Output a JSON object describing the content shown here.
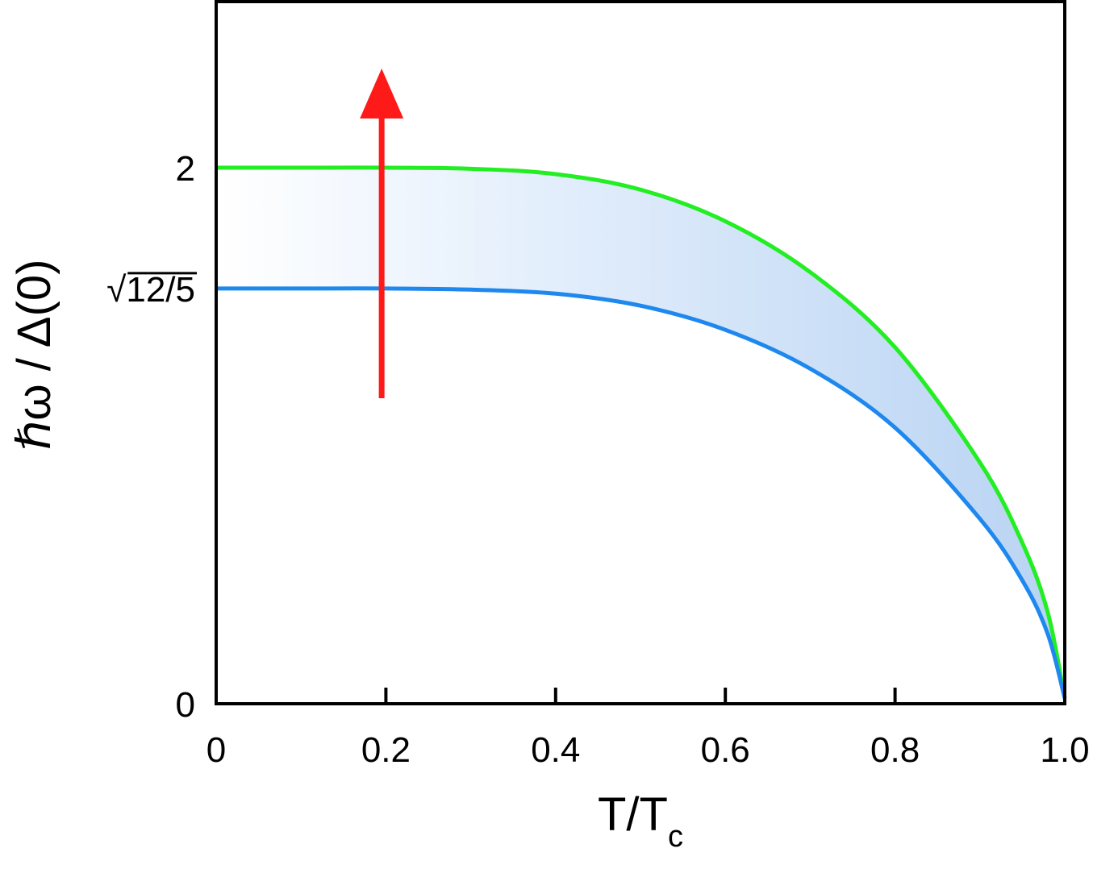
{
  "chart_data": {
    "type": "line",
    "xlabel_main": "T/T",
    "xlabel_sub": "c",
    "ylabel": "ℏω / Δ(0)",
    "xlim": [
      0,
      1.0
    ],
    "ylim": [
      0,
      2.0
    ],
    "x_ticks": [
      {
        "value": 0,
        "label": "0"
      },
      {
        "value": 0.2,
        "label": "0.2"
      },
      {
        "value": 0.4,
        "label": "0.4"
      },
      {
        "value": 0.6,
        "label": "0.6"
      },
      {
        "value": 0.8,
        "label": "0.8"
      },
      {
        "value": 1.0,
        "label": "1.0"
      }
    ],
    "y_ticks": [
      {
        "value": 0,
        "label": "0"
      },
      {
        "value": 1.5492,
        "label": "√12/5"
      },
      {
        "value": 2.0,
        "label": "2"
      }
    ],
    "x": [
      0,
      0.1,
      0.2,
      0.3,
      0.4,
      0.5,
      0.6,
      0.7,
      0.8,
      0.9,
      0.95,
      0.98,
      1.0
    ],
    "series": [
      {
        "color": "#22ee22",
        "values": [
          2.0,
          2.0,
          2.0,
          1.996,
          1.976,
          1.918,
          1.8,
          1.61,
          1.33,
          0.9,
          0.6,
          0.34,
          0.02
        ]
      },
      {
        "color": "#1e88ee",
        "values": [
          1.5492,
          1.5492,
          1.5492,
          1.545,
          1.53,
          1.485,
          1.395,
          1.25,
          1.03,
          0.69,
          0.46,
          0.26,
          0.02
        ]
      }
    ],
    "band_fill_color": "#b8d3f3",
    "arrow": {
      "x": 0.195,
      "y_from": 1.14,
      "y_to": 2.37,
      "color": "#ff1a1a"
    },
    "grid": false,
    "legend": "none"
  }
}
